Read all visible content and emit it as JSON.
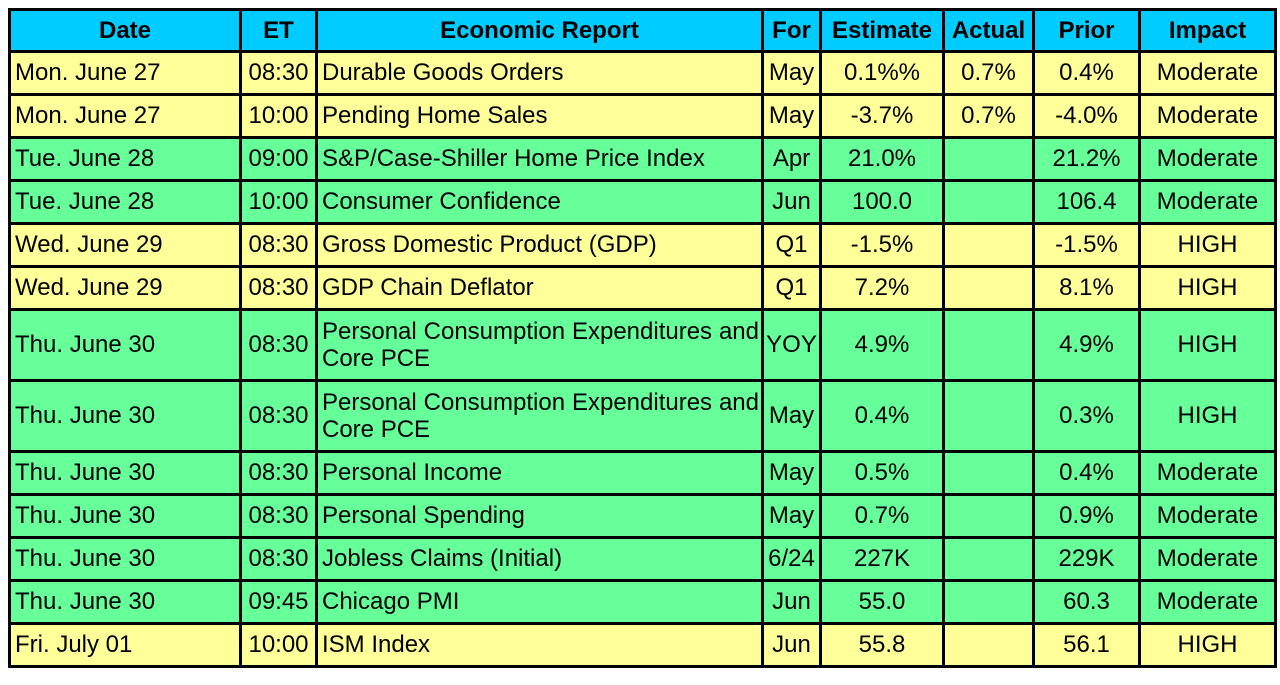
{
  "headers": [
    "Date",
    "ET",
    "Economic Report",
    "For",
    "Estimate",
    "Actual",
    "Prior",
    "Impact"
  ],
  "rows": [
    {
      "date": "Mon. June 27",
      "et": "08:30",
      "report": "Durable Goods Orders",
      "for": "May",
      "estimate": "0.1%%",
      "actual": "0.7%",
      "prior": "0.4%",
      "impact": "Moderate",
      "color": "#ffff99"
    },
    {
      "date": "Mon. June 27",
      "et": "10:00",
      "report": "Pending Home Sales",
      "for": "May",
      "estimate": "-3.7%",
      "actual": "0.7%",
      "prior": "-4.0%",
      "impact": "Moderate",
      "color": "#ffff99"
    },
    {
      "date": "Tue. June 28",
      "et": "09:00",
      "report": "S&P/Case-Shiller Home Price Index",
      "for": "Apr",
      "estimate": "21.0%",
      "actual": "",
      "prior": "21.2%",
      "impact": "Moderate",
      "color": "#66ff99"
    },
    {
      "date": "Tue. June 28",
      "et": "10:00",
      "report": "Consumer Confidence",
      "for": "Jun",
      "estimate": "100.0",
      "actual": "",
      "prior": "106.4",
      "impact": "Moderate",
      "color": "#66ff99"
    },
    {
      "date": "Wed. June 29",
      "et": "08:30",
      "report": "Gross Domestic Product (GDP)",
      "for": "Q1",
      "estimate": "-1.5%",
      "actual": "",
      "prior": "-1.5%",
      "impact": "HIGH",
      "color": "#ffff99"
    },
    {
      "date": "Wed. June 29",
      "et": "08:30",
      "report": "GDP Chain Deflator",
      "for": "Q1",
      "estimate": "7.2%",
      "actual": "",
      "prior": "8.1%",
      "impact": "HIGH",
      "color": "#ffff99"
    },
    {
      "date": "Thu. June 30",
      "et": "08:30",
      "report": "Personal Consumption Expenditures and Core PCE",
      "for": "YOY",
      "estimate": "4.9%",
      "actual": "",
      "prior": "4.9%",
      "impact": "HIGH",
      "color": "#66ff99"
    },
    {
      "date": "Thu. June 30",
      "et": "08:30",
      "report": "Personal Consumption Expenditures and Core PCE",
      "for": "May",
      "estimate": "0.4%",
      "actual": "",
      "prior": "0.3%",
      "impact": "HIGH",
      "color": "#66ff99"
    },
    {
      "date": "Thu. June 30",
      "et": "08:30",
      "report": "Personal Income",
      "for": "May",
      "estimate": "0.5%",
      "actual": "",
      "prior": "0.4%",
      "impact": "Moderate",
      "color": "#66ff99"
    },
    {
      "date": "Thu. June 30",
      "et": "08:30",
      "report": "Personal Spending",
      "for": "May",
      "estimate": "0.7%",
      "actual": "",
      "prior": "0.9%",
      "impact": "Moderate",
      "color": "#66ff99"
    },
    {
      "date": "Thu. June 30",
      "et": "08:30",
      "report": "Jobless Claims (Initial)",
      "for": "6/24",
      "estimate": "227K",
      "actual": "",
      "prior": "229K",
      "impact": "Moderate",
      "color": "#66ff99"
    },
    {
      "date": "Thu. June 30",
      "et": "09:45",
      "report": "Chicago PMI",
      "for": "Jun",
      "estimate": "55.0",
      "actual": "",
      "prior": "60.3",
      "impact": "Moderate",
      "color": "#66ff99"
    },
    {
      "date": "Fri. July 01",
      "et": "10:00",
      "report": "ISM Index",
      "for": "Jun",
      "estimate": "55.8",
      "actual": "",
      "prior": "56.1",
      "impact": "HIGH",
      "color": "#ffff99"
    }
  ],
  "colors": {
    "header": "#00ccff",
    "yellow": "#ffff99",
    "green": "#66ff99",
    "border": "#000000"
  }
}
